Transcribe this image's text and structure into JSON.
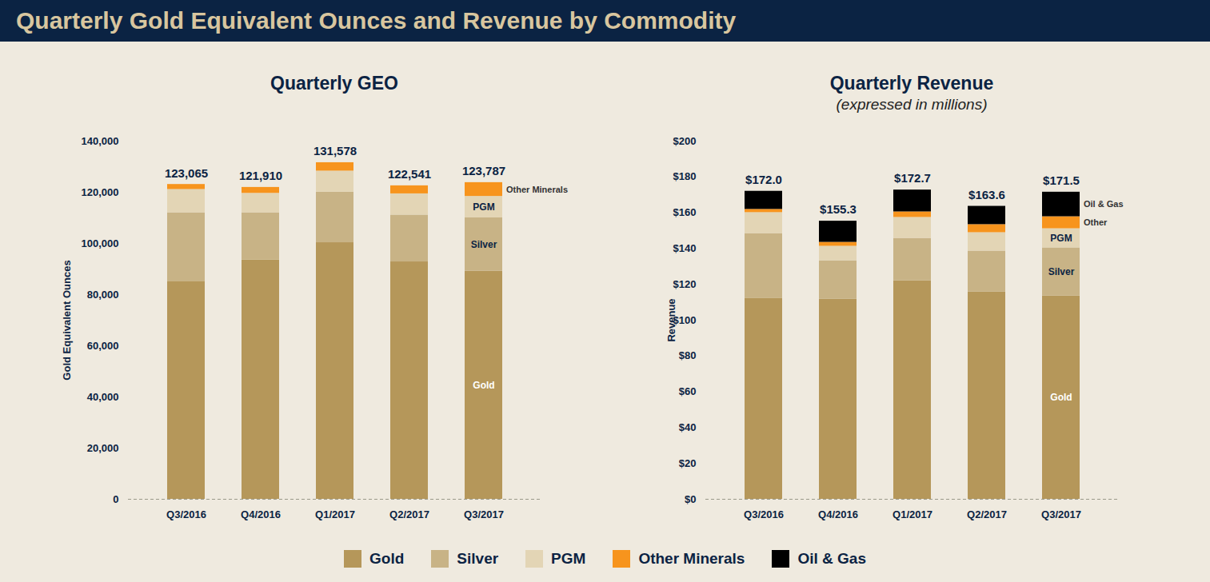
{
  "title": "Quarterly Gold Equivalent Ounces and Revenue by Commodity",
  "chart_data": [
    {
      "type": "bar",
      "title": "Quarterly GEO",
      "y_label": "Gold Equivalent Ounces",
      "stacked": true,
      "grid": false,
      "legend": "bottom",
      "categories": [
        "Q3/2016",
        "Q4/2016",
        "Q1/2017",
        "Q2/2017",
        "Q3/2017"
      ],
      "series": [
        {
          "name": "Gold",
          "color": "#b5975a",
          "values": [
            85000,
            93500,
            100300,
            92800,
            89200
          ]
        },
        {
          "name": "Silver",
          "color": "#c8b386",
          "values": [
            27000,
            18500,
            19800,
            18300,
            20800
          ]
        },
        {
          "name": "PGM",
          "color": "#e3d5b5",
          "values": [
            9100,
            7600,
            8200,
            8300,
            8400
          ]
        },
        {
          "name": "Other Minerals",
          "color": "#f7941d",
          "values": [
            1965,
            2310,
            3278,
            3141,
            5387
          ]
        }
      ],
      "totals": [
        123065,
        121910,
        131578,
        122541,
        123787
      ],
      "total_labels": [
        "123,065",
        "121,910",
        "131,578",
        "122,541",
        "123,787"
      ],
      "annotations": [
        {
          "text": "Other Minerals",
          "series": "Other Minerals",
          "category": "Q3/2017"
        },
        {
          "text": "PGM",
          "series": "PGM",
          "category": "Q3/2017"
        },
        {
          "text": "Silver",
          "series": "Silver",
          "category": "Q3/2017"
        },
        {
          "text": "Gold",
          "series": "Gold",
          "category": "Q3/2017"
        }
      ],
      "ylim": [
        0,
        140000
      ],
      "yticks": [
        0,
        {
          "value": 20000,
          "label": "20,000"
        },
        {
          "value": 40000,
          "label": "40,000"
        },
        {
          "value": 60000,
          "label": "60,000"
        },
        {
          "value": 80000,
          "label": "80,000"
        },
        {
          "value": 100000,
          "label": "100,000"
        },
        {
          "value": 120000,
          "label": "120,000"
        },
        {
          "value": 140000,
          "label": "140,000"
        }
      ]
    },
    {
      "type": "bar",
      "title": "Quarterly Revenue",
      "subtitle": "(expressed in millions)",
      "y_label": "Revenue",
      "stacked": true,
      "grid": false,
      "legend": "bottom",
      "categories": [
        "Q3/2016",
        "Q4/2016",
        "Q1/2017",
        "Q2/2017",
        "Q3/2017"
      ],
      "series": [
        {
          "name": "Gold",
          "color": "#b5975a",
          "values": [
            112.1,
            111.7,
            122.0,
            115.7,
            113.5
          ]
        },
        {
          "name": "Silver",
          "color": "#c8b386",
          "values": [
            36.3,
            21.5,
            23.7,
            22.9,
            26.9
          ]
        },
        {
          "name": "PGM",
          "color": "#e3d5b5",
          "values": [
            11.7,
            8.1,
            11.7,
            10.3,
            10.7
          ]
        },
        {
          "name": "Other Minerals",
          "color": "#f7941d",
          "values": [
            1.8,
            2.2,
            3.1,
            4.5,
            6.7
          ]
        },
        {
          "name": "Oil & Gas",
          "color": "#000000",
          "values": [
            10.1,
            11.8,
            12.2,
            10.2,
            13.7
          ]
        }
      ],
      "totals": [
        172.0,
        155.3,
        172.7,
        163.6,
        171.5
      ],
      "total_labels": [
        "$172.0",
        "$155.3",
        "$172.7",
        "$163.6",
        "$171.5"
      ],
      "annotations": [
        {
          "text": "Oil & Gas",
          "series": "Oil & Gas",
          "category": "Q3/2017"
        },
        {
          "text": "Other",
          "series": "Other Minerals",
          "category": "Q3/2017"
        },
        {
          "text": "PGM",
          "series": "PGM",
          "category": "Q3/2017"
        },
        {
          "text": "Silver",
          "series": "Silver",
          "category": "Q3/2017"
        },
        {
          "text": "Gold",
          "series": "Gold",
          "category": "Q3/2017"
        }
      ],
      "ylim": [
        0,
        200
      ],
      "yticks": [
        {
          "value": 0,
          "label": "$0"
        },
        {
          "value": 20,
          "label": "$20"
        },
        {
          "value": 40,
          "label": "$40"
        },
        {
          "value": 60,
          "label": "$60"
        },
        {
          "value": 80,
          "label": "$80"
        },
        {
          "value": 100,
          "label": "$100"
        },
        {
          "value": 120,
          "label": "$120"
        },
        {
          "value": 140,
          "label": "$140"
        },
        {
          "value": 160,
          "label": "$160"
        },
        {
          "value": 180,
          "label": "$180"
        },
        {
          "value": 200,
          "label": "$200"
        }
      ]
    }
  ]
}
